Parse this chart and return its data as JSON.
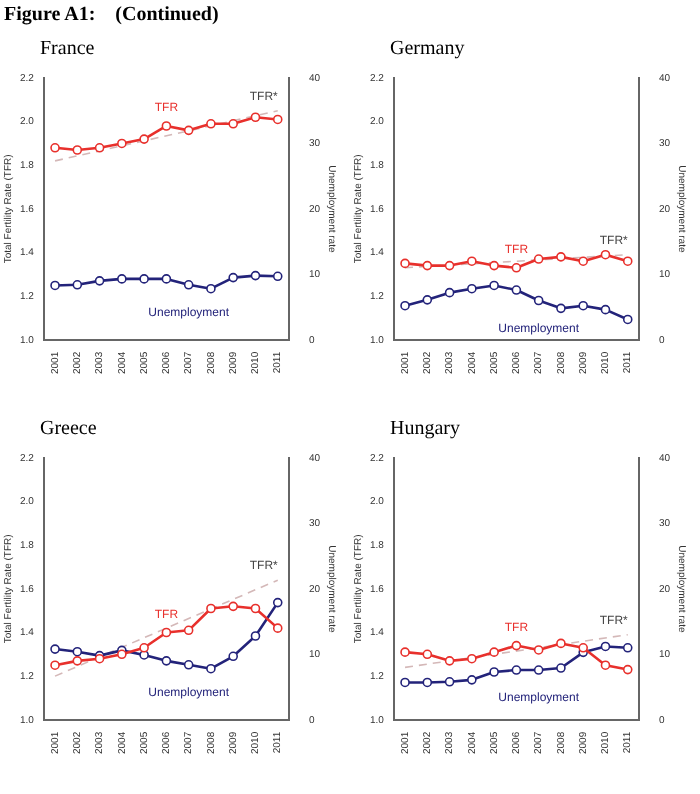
{
  "chart_data": [
    {
      "type": "line",
      "title": "Figure A1:    (Continued)",
      "subtitle": "France",
      "ylabel": "Total Fertility Rate (TFR)",
      "y2label": "Unemployment rate",
      "categories": [
        "2001",
        "2002",
        "2003",
        "2004",
        "2005",
        "2006",
        "2007",
        "2008",
        "2009",
        "2010",
        "2011"
      ],
      "ylim": [
        1.0,
        2.2
      ],
      "yticks": [
        {
          "value": 1.0,
          "label": "1.0"
        },
        {
          "value": 1.2,
          "label": "1.2"
        },
        {
          "value": 1.4,
          "label": "1.4"
        },
        {
          "value": 1.6,
          "label": "1.6"
        },
        {
          "value": 1.8,
          "label": "1.8"
        },
        {
          "value": 2.0,
          "label": "2.0"
        },
        {
          "value": 2.2,
          "label": "2.2"
        }
      ],
      "y2lim": [
        0,
        40
      ],
      "y2ticks": [
        0,
        10,
        20,
        30,
        40
      ],
      "grid": false,
      "legend": false,
      "series": [
        {
          "name": "TFR",
          "color": "#e8302c",
          "marker": "circle",
          "values": [
            1.88,
            1.87,
            1.88,
            1.9,
            1.92,
            1.98,
            1.96,
            1.99,
            1.99,
            2.02,
            2.01
          ]
        },
        {
          "name": "Unemployment",
          "color": "#23237a",
          "marker": "circle",
          "axis": "y2",
          "values": [
            8.3,
            8.4,
            9.0,
            9.3,
            9.3,
            9.3,
            8.4,
            7.8,
            9.5,
            9.8,
            9.7
          ]
        },
        {
          "name": "TFR*",
          "color": "#d4b8b8",
          "marker": "none",
          "line_style": "dashed",
          "values": [
            1.82,
            null,
            null,
            null,
            null,
            null,
            null,
            null,
            null,
            null,
            2.05
          ]
        }
      ]
    },
    {
      "type": "line",
      "subtitle": "Germany",
      "ylabel": "Total Fertility Rate (TFR)",
      "y2label": "Unemployment rate",
      "categories": [
        "2001",
        "2002",
        "2003",
        "2004",
        "2005",
        "2006",
        "2007",
        "2008",
        "2009",
        "2010",
        "2011"
      ],
      "ylim": [
        1.0,
        2.2
      ],
      "yticks": [
        {
          "value": 1.0,
          "label": "1.0"
        },
        {
          "value": 1.2,
          "label": "1.2"
        },
        {
          "value": 1.4,
          "label": "1.4"
        },
        {
          "value": 1.6,
          "label": "1.6"
        },
        {
          "value": 1.8,
          "label": "1.8"
        },
        {
          "value": 2.0,
          "label": "2.0"
        },
        {
          "value": 2.2,
          "label": "2.2"
        }
      ],
      "y2lim": [
        0,
        40
      ],
      "y2ticks": [
        0,
        10,
        20,
        30,
        40
      ],
      "grid": false,
      "legend": false,
      "series": [
        {
          "name": "TFR",
          "color": "#e8302c",
          "marker": "circle",
          "values": [
            1.35,
            1.34,
            1.34,
            1.36,
            1.34,
            1.33,
            1.37,
            1.38,
            1.36,
            1.39,
            1.36
          ]
        },
        {
          "name": "Unemployment",
          "color": "#23237a",
          "marker": "circle",
          "axis": "y2",
          "values": [
            5.2,
            6.1,
            7.2,
            7.8,
            8.3,
            7.6,
            6.0,
            4.8,
            5.2,
            4.6,
            3.1
          ]
        },
        {
          "name": "TFR*",
          "color": "#d4b8b8",
          "marker": "none",
          "line_style": "dashed",
          "values": [
            1.33,
            null,
            null,
            null,
            null,
            null,
            null,
            null,
            null,
            null,
            1.39
          ]
        }
      ]
    },
    {
      "type": "line",
      "subtitle": "Greece",
      "ylabel": "Total Fertility Rate (TFR)",
      "y2label": "Unemployment rate",
      "categories": [
        "2001",
        "2002",
        "2003",
        "2004",
        "2005",
        "2006",
        "2007",
        "2008",
        "2009",
        "2010",
        "2011"
      ],
      "ylim": [
        1.0,
        2.2
      ],
      "yticks": [
        {
          "value": 1.0,
          "label": "1.0"
        },
        {
          "value": 1.2,
          "label": "1.2"
        },
        {
          "value": 1.4,
          "label": "1.4"
        },
        {
          "value": 1.6,
          "label": "1.6"
        },
        {
          "value": 1.8,
          "label": "1.8"
        },
        {
          "value": 2.0,
          "label": "2.0"
        },
        {
          "value": 2.2,
          "label": "2.2"
        }
      ],
      "y2lim": [
        0,
        40
      ],
      "y2ticks": [
        0,
        10,
        20,
        30,
        40
      ],
      "grid": false,
      "legend": false,
      "series": [
        {
          "name": "TFR",
          "color": "#e8302c",
          "marker": "circle",
          "values": [
            1.25,
            1.27,
            1.28,
            1.3,
            1.33,
            1.4,
            1.41,
            1.51,
            1.52,
            1.51,
            1.42
          ]
        },
        {
          "name": "Unemployment",
          "color": "#23237a",
          "marker": "circle",
          "axis": "y2",
          "values": [
            10.8,
            10.4,
            9.8,
            10.6,
            9.9,
            9.0,
            8.4,
            7.8,
            9.7,
            12.8,
            17.9
          ]
        },
        {
          "name": "TFR*",
          "color": "#d4b8b8",
          "marker": "none",
          "line_style": "dashed",
          "values": [
            1.2,
            null,
            null,
            null,
            null,
            null,
            null,
            null,
            null,
            null,
            1.64
          ]
        }
      ]
    },
    {
      "type": "line",
      "subtitle": "Hungary",
      "ylabel": "Total Fertility Rate (TFR)",
      "y2label": "Unemployment rate",
      "categories": [
        "2001",
        "2002",
        "2003",
        "2004",
        "2005",
        "2006",
        "2007",
        "2008",
        "2009",
        "2010",
        "2011"
      ],
      "ylim": [
        1.0,
        2.2
      ],
      "yticks": [
        {
          "value": 1.0,
          "label": "1.0"
        },
        {
          "value": 1.2,
          "label": "1.2"
        },
        {
          "value": 1.4,
          "label": "1.4"
        },
        {
          "value": 1.6,
          "label": "1.6"
        },
        {
          "value": 1.8,
          "label": "1.8"
        },
        {
          "value": 2.0,
          "label": "2.0"
        },
        {
          "value": 2.2,
          "label": "2.2"
        }
      ],
      "y2lim": [
        0,
        40
      ],
      "y2ticks": [
        0,
        10,
        20,
        30,
        40
      ],
      "grid": false,
      "legend": false,
      "series": [
        {
          "name": "TFR",
          "color": "#e8302c",
          "marker": "circle",
          "values": [
            1.31,
            1.3,
            1.27,
            1.28,
            1.31,
            1.34,
            1.32,
            1.35,
            1.33,
            1.25,
            1.23
          ]
        },
        {
          "name": "Unemployment",
          "color": "#23237a",
          "marker": "circle",
          "axis": "y2",
          "values": [
            5.7,
            5.7,
            5.8,
            6.1,
            7.3,
            7.6,
            7.6,
            7.9,
            10.3,
            11.2,
            11.0
          ]
        },
        {
          "name": "TFR*",
          "color": "#d4b8b8",
          "marker": "none",
          "line_style": "dashed",
          "values": [
            1.24,
            null,
            null,
            null,
            null,
            null,
            null,
            null,
            null,
            null,
            1.39
          ]
        }
      ]
    }
  ]
}
